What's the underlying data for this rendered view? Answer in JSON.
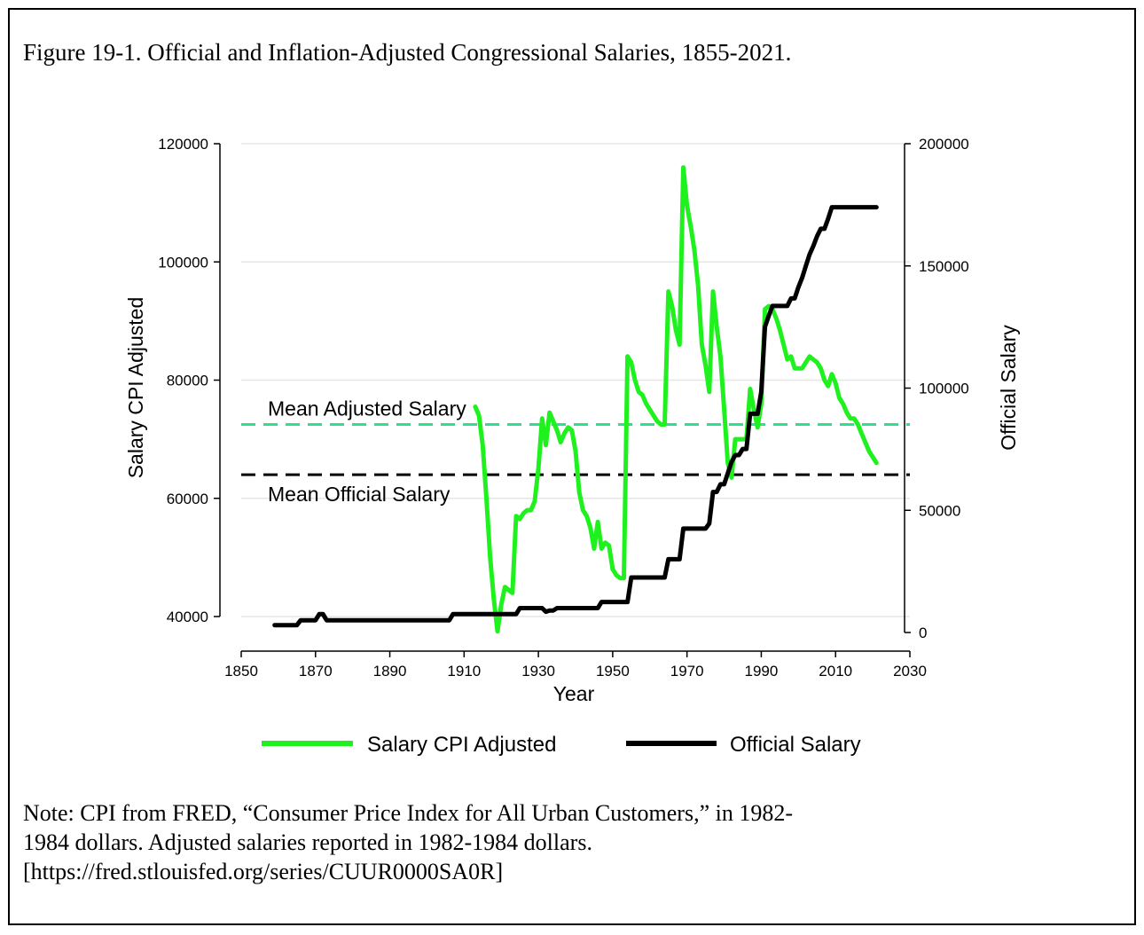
{
  "figure_title": "Figure 19-1. Official and Inflation-Adjusted Congressional Salaries, 1855-2021.",
  "note_lines": [
    "Note: CPI from FRED, “Consumer Price Index for All Urban Customers,” in 1982-",
    "1984 dollars. Adjusted salaries reported in 1982-1984 dollars.",
    "[https://fred.stlouisfed.org/series/CUUR0000SA0R]"
  ],
  "colors": {
    "adjusted": "#1ef11e",
    "official": "#000000",
    "mean_adjusted_line": "#2ee08e",
    "mean_official_line": "#000000",
    "gridline": "#e6e6e6"
  },
  "chart_data": {
    "type": "line",
    "title": "",
    "xlabel": "Year",
    "ylabel_left": "Salary CPI Adjusted",
    "ylabel_right": "Official Salary",
    "xlim": [
      1850,
      2030
    ],
    "ylim_left": [
      37000,
      120000
    ],
    "ylim_right": [
      0,
      200000
    ],
    "x_ticks": [
      1850,
      1870,
      1890,
      1910,
      1930,
      1950,
      1970,
      1990,
      2010,
      2030
    ],
    "y_ticks_left": [
      40000,
      60000,
      80000,
      100000,
      120000
    ],
    "y_ticks_right": [
      0,
      50000,
      100000,
      150000,
      200000
    ],
    "grid": true,
    "legend_position": "bottom",
    "reference_lines": [
      {
        "label": "Mean Adjusted Salary",
        "axis": "left",
        "value": 72500,
        "style": "dashed",
        "color_key": "mean_adjusted_line"
      },
      {
        "label": "Mean Official Salary",
        "axis": "left",
        "value": 64000,
        "style": "dashed",
        "color_key": "mean_official_line"
      }
    ],
    "series": [
      {
        "name": "Salary CPI Adjusted",
        "axis": "left",
        "color_key": "adjusted",
        "x": [
          1913,
          1914,
          1915,
          1916,
          1917,
          1918,
          1919,
          1920,
          1921,
          1922,
          1923,
          1924,
          1925,
          1926,
          1927,
          1928,
          1929,
          1930,
          1931,
          1932,
          1933,
          1934,
          1935,
          1936,
          1937,
          1938,
          1939,
          1940,
          1941,
          1942,
          1943,
          1944,
          1945,
          1946,
          1947,
          1948,
          1949,
          1950,
          1951,
          1952,
          1953,
          1954,
          1955,
          1956,
          1957,
          1958,
          1959,
          1960,
          1961,
          1962,
          1963,
          1964,
          1965,
          1966,
          1967,
          1968,
          1969,
          1970,
          1971,
          1972,
          1973,
          1974,
          1975,
          1976,
          1977,
          1978,
          1979,
          1980,
          1981,
          1982,
          1983,
          1984,
          1985,
          1986,
          1987,
          1988,
          1989,
          1990,
          1991,
          1992,
          1993,
          1994,
          1995,
          1996,
          1997,
          1998,
          1999,
          2000,
          2001,
          2002,
          2003,
          2004,
          2005,
          2006,
          2007,
          2008,
          2009,
          2010,
          2011,
          2012,
          2013,
          2014,
          2015,
          2016,
          2017,
          2018,
          2019,
          2020,
          2021
        ],
        "values": [
          75500,
          74000,
          69000,
          60000,
          50000,
          43000,
          37500,
          42000,
          45000,
          44500,
          44000,
          57000,
          56500,
          57500,
          58000,
          58000,
          59500,
          65000,
          73500,
          69000,
          74500,
          73000,
          71500,
          69500,
          71000,
          72000,
          71500,
          68000,
          61000,
          58000,
          57000,
          55000,
          51500,
          56000,
          51500,
          52500,
          52000,
          48000,
          47000,
          46500,
          46500,
          84000,
          83000,
          80000,
          78000,
          77500,
          76000,
          75000,
          74000,
          73000,
          72500,
          72500,
          95000,
          92500,
          88500,
          86000,
          116000,
          109500,
          106000,
          102000,
          96000,
          86000,
          82500,
          78000,
          95000,
          89000,
          84000,
          75000,
          66000,
          63500,
          70000,
          70000,
          70000,
          70000,
          78500,
          75000,
          72000,
          76000,
          92000,
          92500,
          92000,
          90500,
          88500,
          86000,
          83500,
          84000,
          82000,
          82000,
          82000,
          83000,
          84000,
          83500,
          83000,
          82000,
          80000,
          79000,
          81000,
          79500,
          77000,
          76000,
          74500,
          73500,
          73500,
          72500,
          71000,
          69500,
          68000,
          67000,
          66000
        ]
      },
      {
        "name": "Official Salary",
        "axis": "right",
        "color_key": "official",
        "x": [
          1859,
          1865,
          1866,
          1870,
          1871,
          1872,
          1873,
          1874,
          1880,
          1890,
          1900,
          1906,
          1907,
          1910,
          1919,
          1920,
          1924,
          1925,
          1931,
          1932,
          1933,
          1934,
          1935,
          1936,
          1940,
          1946,
          1947,
          1950,
          1954,
          1955,
          1960,
          1964,
          1965,
          1968,
          1969,
          1975,
          1976,
          1977,
          1978,
          1979,
          1980,
          1982,
          1983,
          1984,
          1985,
          1986,
          1987,
          1988,
          1989,
          1990,
          1991,
          1992,
          1993,
          1994,
          1996,
          1997,
          1998,
          1999,
          2000,
          2001,
          2002,
          2003,
          2004,
          2005,
          2006,
          2007,
          2008,
          2009,
          2010,
          2015,
          2021
        ],
        "values": [
          3000,
          3000,
          5000,
          5000,
          7500,
          7500,
          5000,
          5000,
          5000,
          5000,
          5000,
          5000,
          7500,
          7500,
          7500,
          7500,
          7500,
          10000,
          10000,
          8500,
          9000,
          9000,
          10000,
          10000,
          10000,
          10000,
          12500,
          12500,
          12500,
          22500,
          22500,
          22500,
          30000,
          30000,
          42500,
          42500,
          44600,
          57500,
          57500,
          60662,
          60662,
          69800,
          72600,
          72600,
          75100,
          75100,
          89500,
          89500,
          89500,
          98400,
          125100,
          129500,
          133600,
          133600,
          133600,
          133600,
          136700,
          136700,
          141300,
          145100,
          150000,
          154700,
          158100,
          162100,
          165200,
          165200,
          169300,
          174000,
          174000,
          174000,
          174000
        ]
      }
    ]
  },
  "legend": {
    "adjusted_label": "Salary CPI Adjusted",
    "official_label": "Official Salary"
  }
}
